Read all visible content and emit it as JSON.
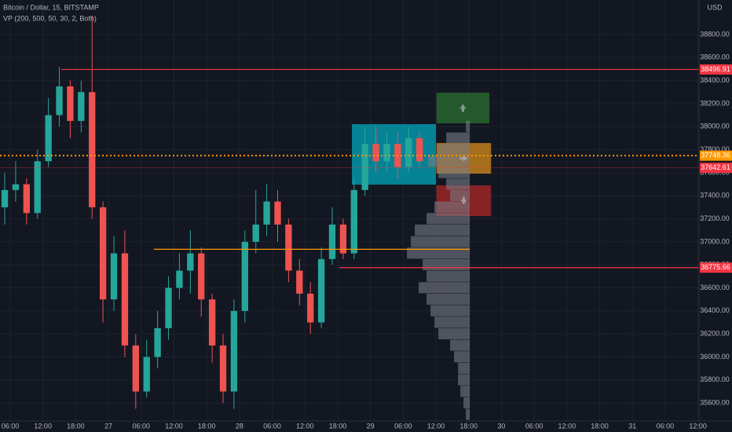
{
  "chart_data": {
    "type": "candlestick",
    "title": "Bitcoin / Dollar, 15, BITSTAMP",
    "subtitle": "VP (200, 500, 50, 30, 2, Both)",
    "currency": "USD",
    "x": [
      5,
      7,
      9,
      11,
      13,
      15,
      17,
      19,
      21,
      23,
      25,
      27,
      29,
      31,
      33,
      35,
      37,
      39,
      41,
      43,
      45,
      47,
      49,
      51,
      53,
      55,
      57,
      59,
      61,
      63,
      65,
      67,
      69,
      71,
      73,
      75,
      77,
      79,
      81
    ],
    "open": [
      37300,
      37450,
      37500,
      37250,
      37700,
      38100,
      38350,
      38050,
      38300,
      37300,
      36500,
      36900,
      36100,
      35700,
      36000,
      36250,
      36600,
      36750,
      36900,
      36500,
      36100,
      35700,
      36400,
      37000,
      37150,
      37350,
      37150,
      36750,
      36550,
      36300,
      36850,
      37150,
      36900,
      37450,
      37850,
      37700,
      37850,
      37650,
      37900
    ],
    "high": [
      37600,
      37700,
      37550,
      37800,
      38250,
      38520,
      38400,
      38400,
      38960,
      37350,
      37050,
      37100,
      36200,
      36150,
      36400,
      36700,
      36900,
      37100,
      36950,
      36550,
      36200,
      36500,
      37100,
      37450,
      37500,
      37450,
      37200,
      36850,
      36650,
      36950,
      37300,
      37200,
      37550,
      38000,
      38000,
      37950,
      37950,
      38000,
      37950
    ],
    "low": [
      37150,
      37350,
      37150,
      37200,
      37650,
      38000,
      37900,
      37950,
      37200,
      36300,
      36400,
      36000,
      35550,
      35650,
      35900,
      36150,
      36500,
      36550,
      36350,
      35950,
      35600,
      35550,
      36300,
      36900,
      37050,
      37000,
      36650,
      36450,
      36200,
      36250,
      36800,
      36850,
      36850,
      37400,
      37600,
      37600,
      37550,
      37600,
      37650
    ],
    "close": [
      37450,
      37500,
      37250,
      37700,
      38100,
      38350,
      38050,
      38300,
      37300,
      36500,
      36900,
      36100,
      35700,
      36000,
      36250,
      36600,
      36750,
      36900,
      36500,
      36100,
      35700,
      36400,
      37000,
      37150,
      37350,
      37150,
      36750,
      36550,
      36300,
      36850,
      37150,
      36900,
      37450,
      37850,
      37700,
      37850,
      37650,
      37900,
      37700
    ],
    "up_color": "#26a69a",
    "down_color": "#ef5350",
    "xlim": [
      4.13,
      132.2
    ],
    "xticks": [
      {
        "value": 6,
        "label": "06:00"
      },
      {
        "value": 12,
        "label": "12:00"
      },
      {
        "value": 18,
        "label": "18:00"
      },
      {
        "value": 24,
        "label": "27"
      },
      {
        "value": 30,
        "label": "06:00"
      },
      {
        "value": 36,
        "label": "12:00"
      },
      {
        "value": 42,
        "label": "18:00"
      },
      {
        "value": 48,
        "label": "28"
      },
      {
        "value": 54,
        "label": "06:00"
      },
      {
        "value": 60,
        "label": "12:00"
      },
      {
        "value": 66,
        "label": "18:00"
      },
      {
        "value": 72,
        "label": "29"
      },
      {
        "value": 78,
        "label": "06:00"
      },
      {
        "value": 84,
        "label": "12:00"
      },
      {
        "value": 90,
        "label": "18:00"
      },
      {
        "value": 96,
        "label": "30"
      },
      {
        "value": 102,
        "label": "06:00"
      },
      {
        "value": 108,
        "label": "12:00"
      },
      {
        "value": 114,
        "label": "18:00"
      },
      {
        "value": 120,
        "label": "31"
      },
      {
        "value": 126,
        "label": "06:00"
      },
      {
        "value": 132,
        "label": "12:00"
      }
    ],
    "ylim": [
      35444,
      39100
    ],
    "yticks": [
      {
        "value": 35600,
        "label": "35600.00"
      },
      {
        "value": 35800,
        "label": "35800.00"
      },
      {
        "value": 36000,
        "label": "36000.00"
      },
      {
        "value": 36200,
        "label": "36200.00"
      },
      {
        "value": 36400,
        "label": "36400.00"
      },
      {
        "value": 36600,
        "label": "36600.00"
      },
      {
        "value": 36800,
        "label": "36800.00"
      },
      {
        "value": 37000,
        "label": "37000.00"
      },
      {
        "value": 37200,
        "label": "37200.00"
      },
      {
        "value": 37400,
        "label": "37400.00"
      },
      {
        "value": 37600,
        "label": "37600.00"
      },
      {
        "value": 37800,
        "label": "37800.00"
      },
      {
        "value": 38000,
        "label": "38000.00"
      },
      {
        "value": 38200,
        "label": "38200.00"
      },
      {
        "value": 38400,
        "label": "38400.00"
      },
      {
        "value": 38600,
        "label": "38600.00"
      },
      {
        "value": 38800,
        "label": "38800.00"
      }
    ],
    "grid": true,
    "price_lines": [
      {
        "value": 38496.91,
        "label": "38496.91",
        "color": "#f23645",
        "style": "solid",
        "from": 15.35
      },
      {
        "value": 37748.36,
        "label": "37748.36",
        "color": "#ff9800",
        "style": "dotted",
        "from": 4.13
      },
      {
        "value": 37642.61,
        "label": "37642.61",
        "color": "#f23645",
        "style": "thin",
        "from": 4.13
      },
      {
        "value": 36775.66,
        "label": "36775.66",
        "color": "#f23645",
        "style": "solid",
        "from": 66.3
      },
      {
        "value": 36935,
        "color": "#ff9800",
        "style": "solid",
        "from": 32.3,
        "to": 90.2
      }
    ],
    "boxes": [
      {
        "x": [
          68.6,
          84
        ],
        "y": [
          37497,
          38022
        ],
        "color": "#00bcd4"
      },
      {
        "x": [
          84.1,
          93.8
        ],
        "y": [
          38029,
          38295
        ],
        "color": "#2e7d32"
      },
      {
        "x": [
          84.1,
          94.1
        ],
        "y": [
          37592,
          37858
        ],
        "color": "#f59c1a"
      },
      {
        "x": [
          84.1,
          94.1
        ],
        "y": [
          37224,
          37490
        ],
        "color": "#c62828"
      }
    ],
    "volume_profile": {
      "x_right": 90.2,
      "color": "#787b86",
      "prices": [
        38000,
        37900,
        37800,
        37700,
        37600,
        37500,
        37400,
        37300,
        37200,
        37100,
        37000,
        36900,
        36800,
        36700,
        36600,
        36500,
        36400,
        36300,
        36200,
        36100,
        36000,
        35900,
        35800,
        35700,
        35600,
        35500
      ],
      "volumes": [
        5,
        30,
        40,
        53,
        40,
        30,
        25,
        45,
        55,
        70,
        75,
        80,
        60,
        55,
        65,
        55,
        50,
        45,
        40,
        25,
        20,
        15,
        15,
        12,
        8,
        5
      ]
    }
  }
}
